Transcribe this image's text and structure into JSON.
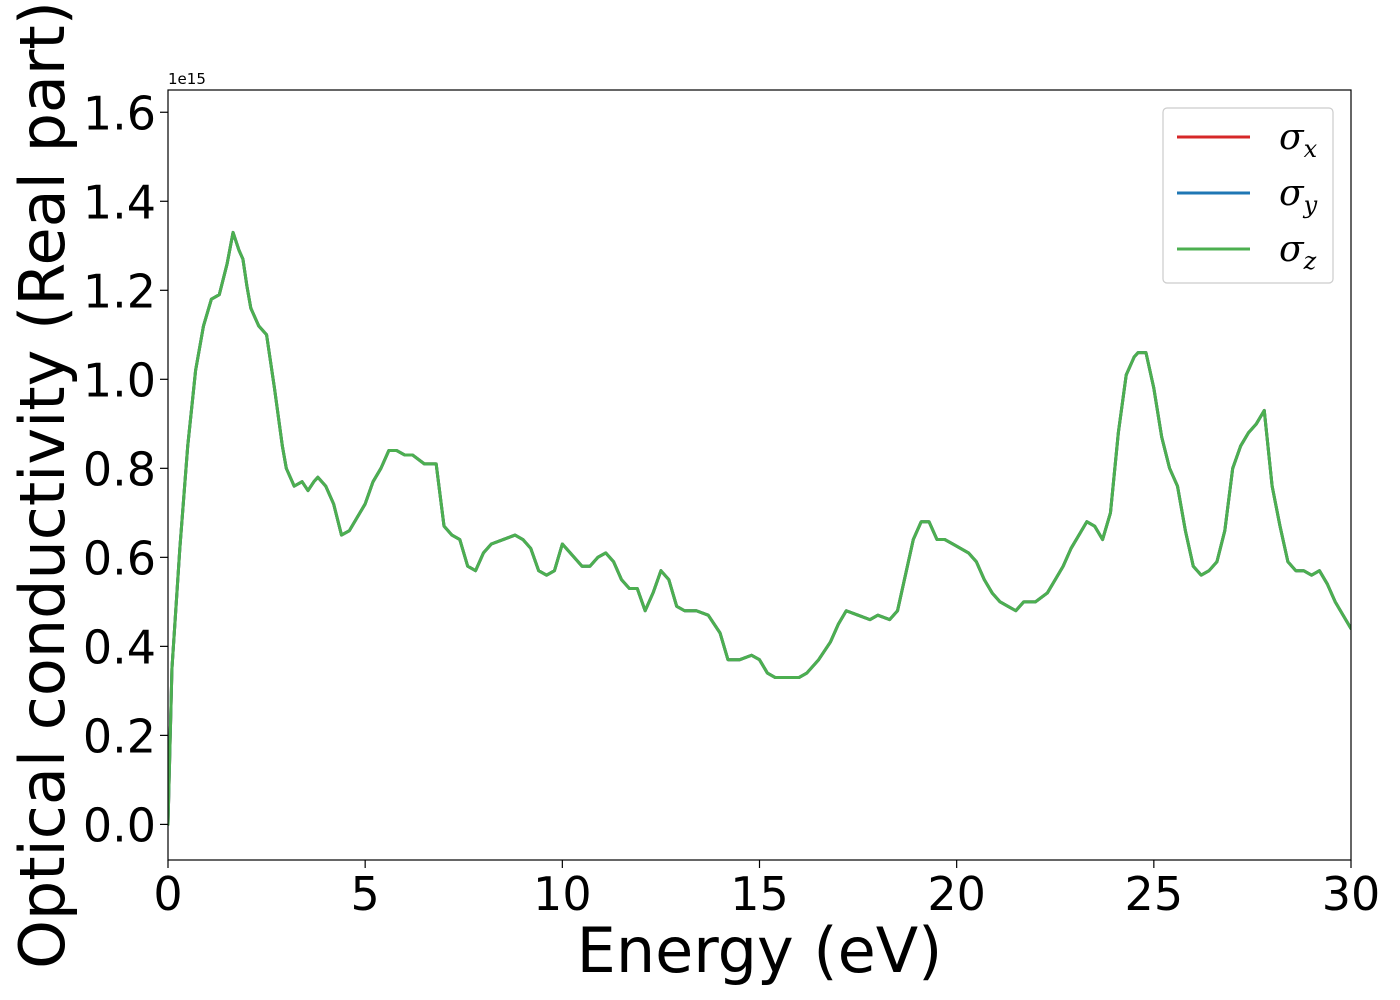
{
  "chart_data": {
    "type": "line",
    "xlabel": "Energy (eV)",
    "ylabel": "Optical conductivity (Real part)",
    "y_offset_label": "1e15",
    "xlim": [
      0,
      30
    ],
    "ylim": [
      -0.08,
      1.65
    ],
    "y_scale_factor": 1000000000000000.0,
    "x_ticks": [
      0,
      5,
      10,
      15,
      20,
      25,
      30
    ],
    "y_ticks": [
      0.0,
      0.2,
      0.4,
      0.6,
      0.8,
      1.0,
      1.2,
      1.4,
      1.6
    ],
    "x_tick_labels": [
      "0",
      "5",
      "10",
      "15",
      "20",
      "25",
      "30"
    ],
    "y_tick_labels": [
      "0.0",
      "0.2",
      "0.4",
      "0.6",
      "0.8",
      "1.0",
      "1.2",
      "1.4",
      "1.6"
    ],
    "grid": false,
    "legend_position": "top-right",
    "x": [
      0.0,
      0.1,
      0.3,
      0.5,
      0.7,
      0.9,
      1.1,
      1.3,
      1.5,
      1.65,
      1.8,
      1.9,
      2.0,
      2.1,
      2.3,
      2.5,
      2.7,
      2.9,
      3.0,
      3.2,
      3.4,
      3.55,
      3.7,
      3.8,
      4.0,
      4.2,
      4.4,
      4.6,
      4.8,
      5.0,
      5.2,
      5.4,
      5.6,
      5.8,
      6.0,
      6.2,
      6.5,
      6.8,
      7.0,
      7.2,
      7.4,
      7.6,
      7.8,
      8.0,
      8.2,
      8.5,
      8.8,
      9.0,
      9.2,
      9.4,
      9.6,
      9.8,
      10.0,
      10.2,
      10.5,
      10.7,
      10.9,
      11.1,
      11.3,
      11.5,
      11.7,
      11.9,
      12.1,
      12.3,
      12.5,
      12.7,
      12.9,
      13.1,
      13.4,
      13.7,
      14.0,
      14.2,
      14.5,
      14.8,
      15.0,
      15.2,
      15.4,
      15.6,
      15.8,
      16.0,
      16.2,
      16.5,
      16.8,
      17.0,
      17.2,
      17.5,
      17.8,
      18.0,
      18.3,
      18.5,
      18.7,
      18.9,
      19.1,
      19.3,
      19.5,
      19.7,
      19.9,
      20.1,
      20.3,
      20.5,
      20.7,
      20.9,
      21.1,
      21.3,
      21.5,
      21.7,
      22.0,
      22.3,
      22.5,
      22.7,
      22.9,
      23.1,
      23.3,
      23.5,
      23.7,
      23.9,
      24.1,
      24.3,
      24.5,
      24.6,
      24.8,
      25.0,
      25.2,
      25.4,
      25.6,
      25.8,
      26.0,
      26.2,
      26.4,
      26.6,
      26.8,
      27.0,
      27.2,
      27.4,
      27.6,
      27.8,
      28.0,
      28.2,
      28.4,
      28.6,
      28.8,
      29.0,
      29.2,
      29.4,
      29.6,
      29.8,
      30.0
    ],
    "series": [
      {
        "name": "σx",
        "color": "#d62728",
        "values": [
          0.0,
          0.35,
          0.62,
          0.85,
          1.02,
          1.12,
          1.18,
          1.19,
          1.26,
          1.33,
          1.29,
          1.27,
          1.21,
          1.16,
          1.12,
          1.1,
          0.98,
          0.85,
          0.8,
          0.76,
          0.77,
          0.75,
          0.77,
          0.78,
          0.76,
          0.72,
          0.65,
          0.66,
          0.69,
          0.72,
          0.77,
          0.8,
          0.84,
          0.84,
          0.83,
          0.83,
          0.81,
          0.81,
          0.67,
          0.65,
          0.64,
          0.58,
          0.57,
          0.61,
          0.63,
          0.64,
          0.65,
          0.64,
          0.62,
          0.57,
          0.56,
          0.57,
          0.63,
          0.61,
          0.58,
          0.58,
          0.6,
          0.61,
          0.59,
          0.55,
          0.53,
          0.53,
          0.48,
          0.52,
          0.57,
          0.55,
          0.49,
          0.48,
          0.48,
          0.47,
          0.43,
          0.37,
          0.37,
          0.38,
          0.37,
          0.34,
          0.33,
          0.33,
          0.33,
          0.33,
          0.34,
          0.37,
          0.41,
          0.45,
          0.48,
          0.47,
          0.46,
          0.47,
          0.46,
          0.48,
          0.56,
          0.64,
          0.68,
          0.68,
          0.64,
          0.64,
          0.63,
          0.62,
          0.61,
          0.59,
          0.55,
          0.52,
          0.5,
          0.49,
          0.48,
          0.5,
          0.5,
          0.52,
          0.55,
          0.58,
          0.62,
          0.65,
          0.68,
          0.67,
          0.64,
          0.7,
          0.88,
          1.01,
          1.05,
          1.06,
          1.06,
          0.98,
          0.87,
          0.8,
          0.76,
          0.66,
          0.58,
          0.56,
          0.57,
          0.59,
          0.66,
          0.8,
          0.85,
          0.88,
          0.9,
          0.93,
          0.76,
          0.67,
          0.59,
          0.57,
          0.57,
          0.56,
          0.57,
          0.54,
          0.5,
          0.47,
          0.44
        ]
      },
      {
        "name": "σy",
        "color": "#1f77b4",
        "values": [
          0.0,
          0.35,
          0.62,
          0.85,
          1.02,
          1.12,
          1.18,
          1.19,
          1.26,
          1.33,
          1.29,
          1.27,
          1.21,
          1.16,
          1.12,
          1.1,
          0.98,
          0.85,
          0.8,
          0.76,
          0.77,
          0.75,
          0.77,
          0.78,
          0.76,
          0.72,
          0.65,
          0.66,
          0.69,
          0.72,
          0.77,
          0.8,
          0.84,
          0.84,
          0.83,
          0.83,
          0.81,
          0.81,
          0.67,
          0.65,
          0.64,
          0.58,
          0.57,
          0.61,
          0.63,
          0.64,
          0.65,
          0.64,
          0.62,
          0.57,
          0.56,
          0.57,
          0.63,
          0.61,
          0.58,
          0.58,
          0.6,
          0.61,
          0.59,
          0.55,
          0.53,
          0.53,
          0.48,
          0.52,
          0.57,
          0.55,
          0.49,
          0.48,
          0.48,
          0.47,
          0.43,
          0.37,
          0.37,
          0.38,
          0.37,
          0.34,
          0.33,
          0.33,
          0.33,
          0.33,
          0.34,
          0.37,
          0.41,
          0.45,
          0.48,
          0.47,
          0.46,
          0.47,
          0.46,
          0.48,
          0.56,
          0.64,
          0.68,
          0.68,
          0.64,
          0.64,
          0.63,
          0.62,
          0.61,
          0.59,
          0.55,
          0.52,
          0.5,
          0.49,
          0.48,
          0.5,
          0.5,
          0.52,
          0.55,
          0.58,
          0.62,
          0.65,
          0.68,
          0.67,
          0.64,
          0.7,
          0.88,
          1.01,
          1.05,
          1.06,
          1.06,
          0.98,
          0.87,
          0.8,
          0.76,
          0.66,
          0.58,
          0.56,
          0.57,
          0.59,
          0.66,
          0.8,
          0.85,
          0.88,
          0.9,
          0.93,
          0.76,
          0.67,
          0.59,
          0.57,
          0.57,
          0.56,
          0.57,
          0.54,
          0.5,
          0.47,
          0.44
        ]
      },
      {
        "name": "σz",
        "color": "#4caf50",
        "values": [
          0.0,
          0.35,
          0.62,
          0.85,
          1.02,
          1.12,
          1.18,
          1.19,
          1.26,
          1.33,
          1.29,
          1.27,
          1.21,
          1.16,
          1.12,
          1.1,
          0.98,
          0.85,
          0.8,
          0.76,
          0.77,
          0.75,
          0.77,
          0.78,
          0.76,
          0.72,
          0.65,
          0.66,
          0.69,
          0.72,
          0.77,
          0.8,
          0.84,
          0.84,
          0.83,
          0.83,
          0.81,
          0.81,
          0.67,
          0.65,
          0.64,
          0.58,
          0.57,
          0.61,
          0.63,
          0.64,
          0.65,
          0.64,
          0.62,
          0.57,
          0.56,
          0.57,
          0.63,
          0.61,
          0.58,
          0.58,
          0.6,
          0.61,
          0.59,
          0.55,
          0.53,
          0.53,
          0.48,
          0.52,
          0.57,
          0.55,
          0.49,
          0.48,
          0.48,
          0.47,
          0.43,
          0.37,
          0.37,
          0.38,
          0.37,
          0.34,
          0.33,
          0.33,
          0.33,
          0.33,
          0.34,
          0.37,
          0.41,
          0.45,
          0.48,
          0.47,
          0.46,
          0.47,
          0.46,
          0.48,
          0.56,
          0.64,
          0.68,
          0.68,
          0.64,
          0.64,
          0.63,
          0.62,
          0.61,
          0.59,
          0.55,
          0.52,
          0.5,
          0.49,
          0.48,
          0.5,
          0.5,
          0.52,
          0.55,
          0.58,
          0.62,
          0.65,
          0.68,
          0.67,
          0.64,
          0.7,
          0.88,
          1.01,
          1.05,
          1.06,
          1.06,
          0.98,
          0.87,
          0.8,
          0.76,
          0.66,
          0.58,
          0.56,
          0.57,
          0.59,
          0.66,
          0.8,
          0.85,
          0.88,
          0.9,
          0.93,
          0.76,
          0.67,
          0.59,
          0.57,
          0.57,
          0.56,
          0.57,
          0.54,
          0.5,
          0.47,
          0.44
        ]
      }
    ],
    "legend": [
      {
        "symbol": "σ",
        "subscript": "x",
        "color": "#d62728"
      },
      {
        "symbol": "σ",
        "subscript": "y",
        "color": "#1f77b4"
      },
      {
        "symbol": "σ",
        "subscript": "z",
        "color": "#4caf50"
      }
    ]
  }
}
